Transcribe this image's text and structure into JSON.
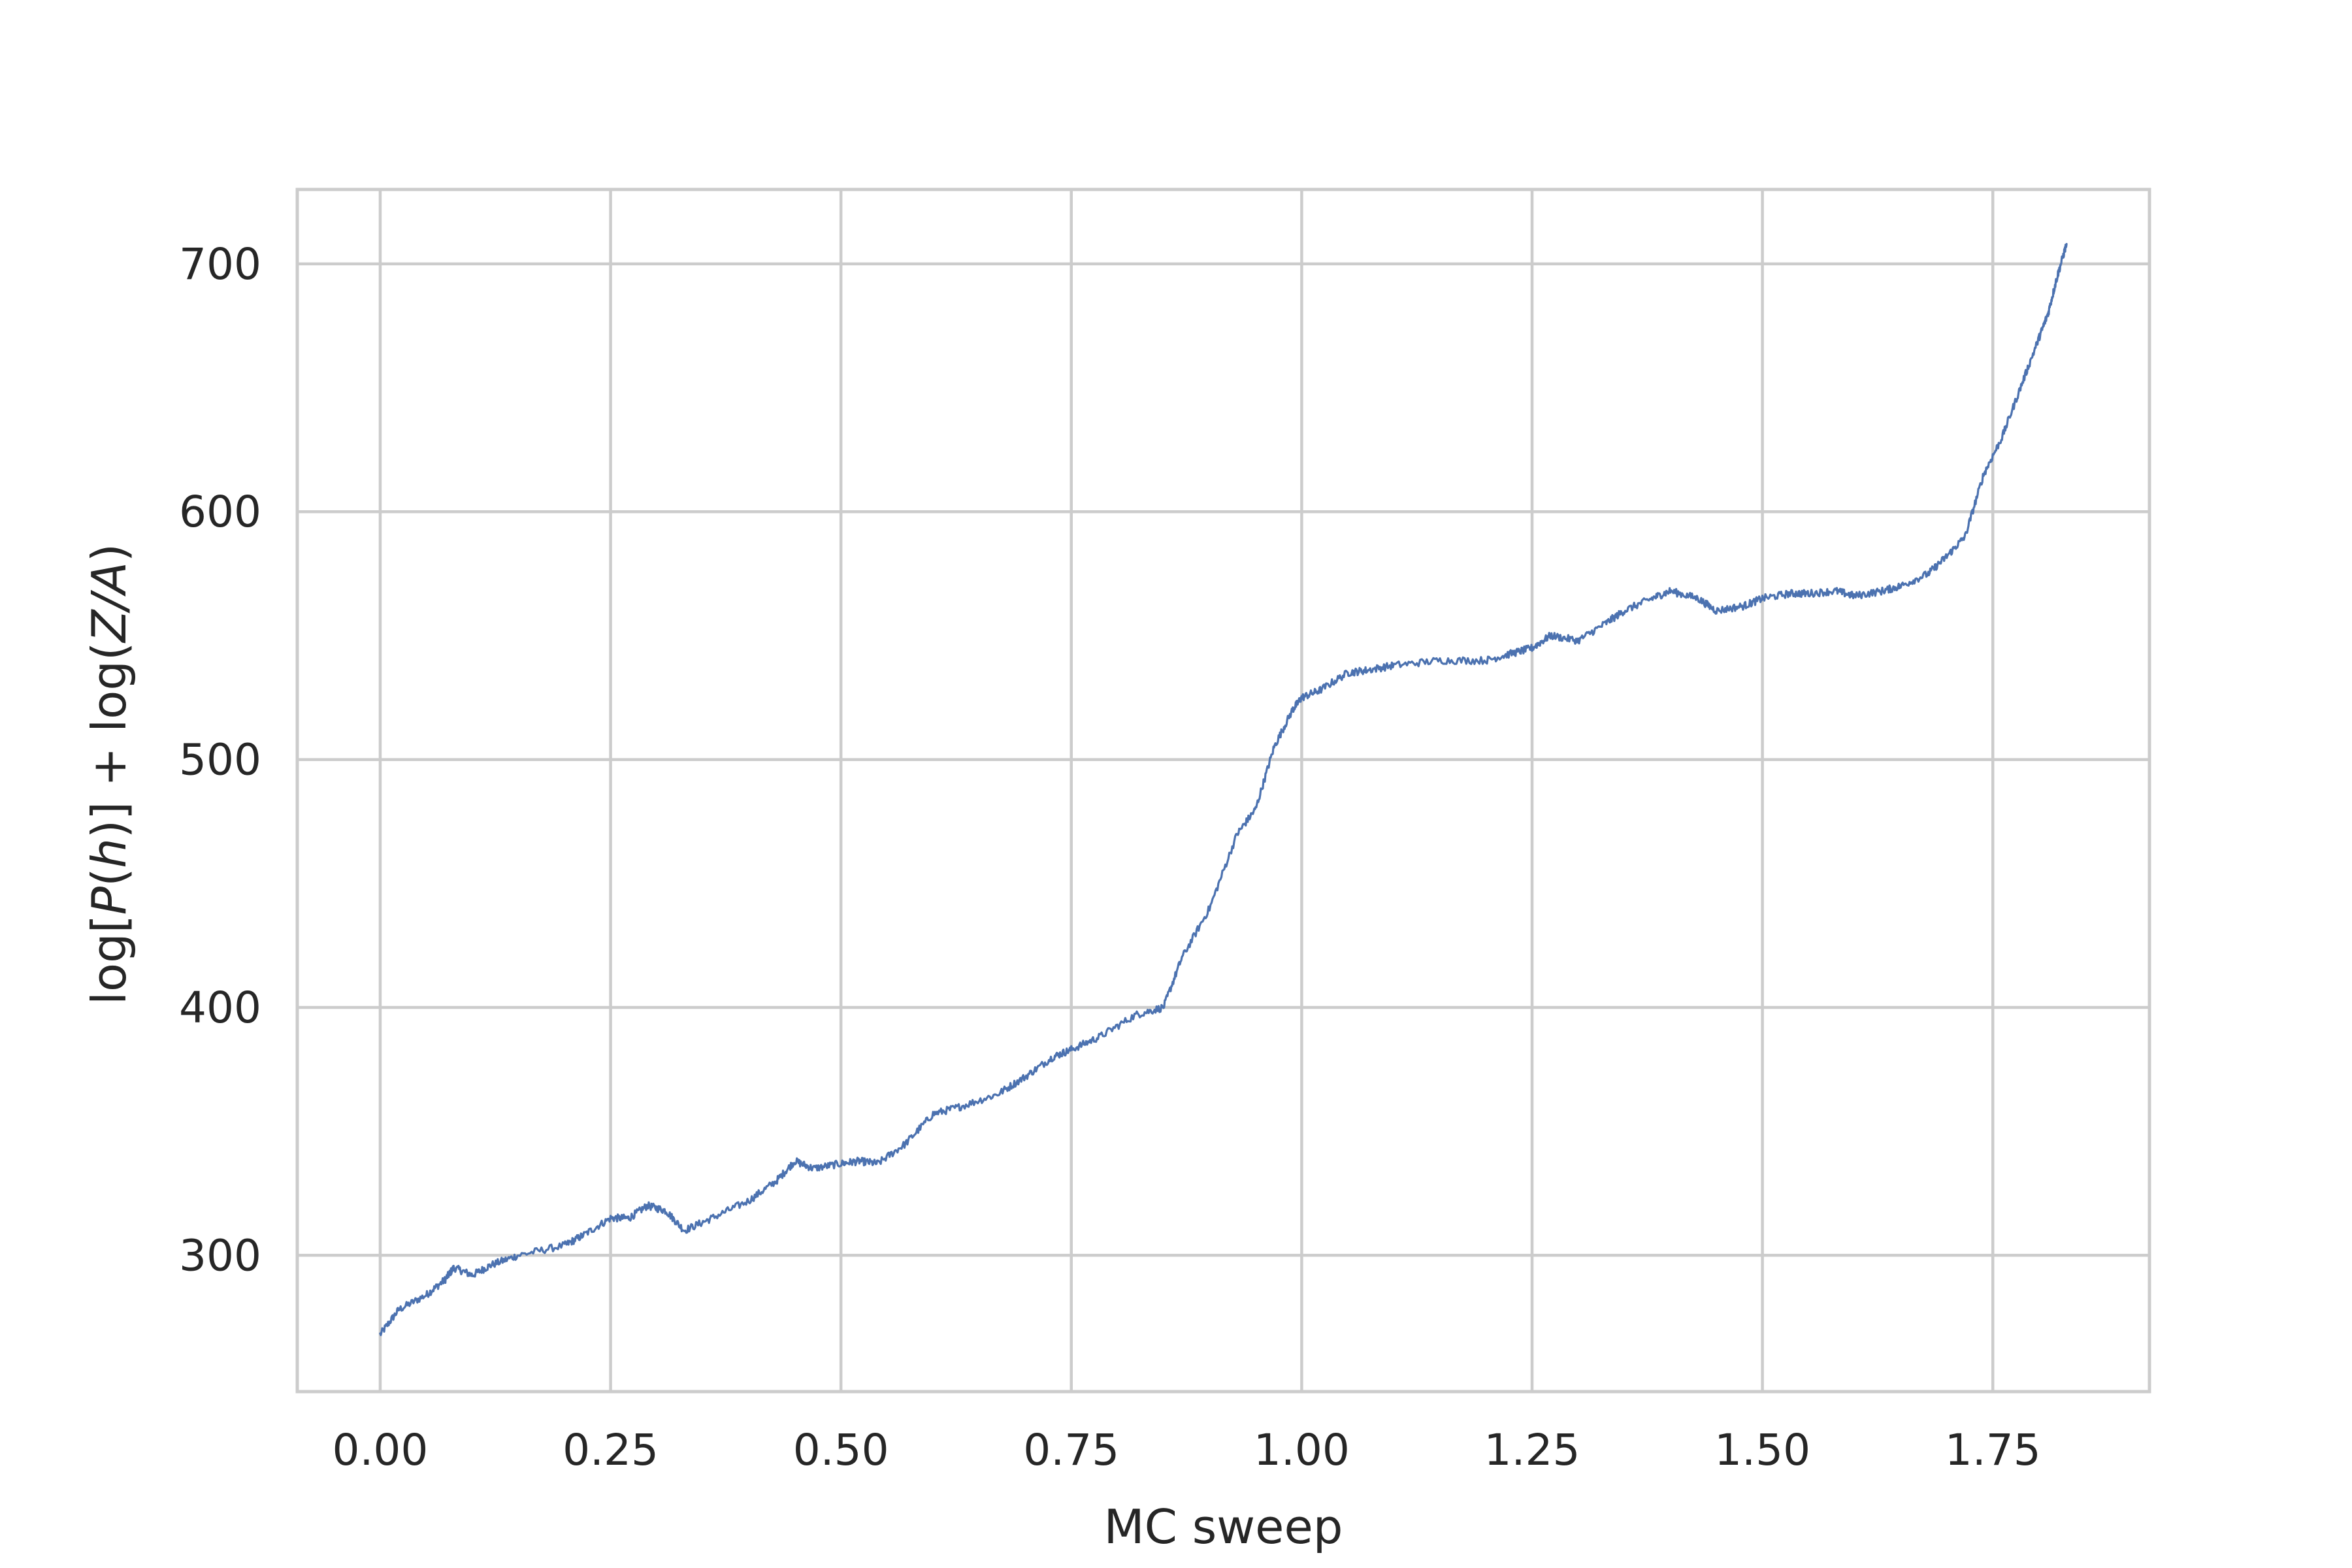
{
  "chart_data": {
    "type": "line",
    "title": "",
    "xlabel": "MC sweep",
    "ylabel": "log[P(h)] + log(Z/A)",
    "ylabel_parts": {
      "log1": "log[",
      "P": "P",
      "paren_open": "(",
      "h": "h",
      "paren_close_bracket": ")]",
      "plus": " + ",
      "log2": "log(",
      "ZA": "Z/A",
      "paren_close": ")"
    },
    "xlim": [
      -0.09,
      1.92
    ],
    "ylim": [
      245,
      730
    ],
    "grid": true,
    "legend": "none",
    "xticks": [
      0.0,
      0.25,
      0.5,
      0.75,
      1.0,
      1.25,
      1.5,
      1.75
    ],
    "xtick_labels": [
      "0.00",
      "0.25",
      "0.50",
      "0.75",
      "1.00",
      "1.25",
      "1.50",
      "1.75"
    ],
    "yticks": [
      300,
      400,
      500,
      600,
      700
    ],
    "ytick_labels": [
      "300",
      "400",
      "500",
      "600",
      "700"
    ],
    "series": [
      {
        "color": "#4c72b0",
        "x": [
          0.0,
          0.02,
          0.05,
          0.07,
          0.08,
          0.1,
          0.12,
          0.15,
          0.2,
          0.22,
          0.25,
          0.27,
          0.29,
          0.31,
          0.33,
          0.36,
          0.4,
          0.43,
          0.45,
          0.47,
          0.5,
          0.52,
          0.54,
          0.57,
          0.6,
          0.63,
          0.67,
          0.7,
          0.73,
          0.75,
          0.78,
          0.82,
          0.85,
          0.87,
          0.9,
          0.93,
          0.95,
          0.97,
          0.99,
          1.0,
          1.02,
          1.05,
          1.07,
          1.1,
          1.15,
          1.2,
          1.23,
          1.25,
          1.27,
          1.3,
          1.33,
          1.35,
          1.38,
          1.4,
          1.43,
          1.45,
          1.48,
          1.5,
          1.53,
          1.55,
          1.58,
          1.6,
          1.63,
          1.65,
          1.68,
          1.7,
          1.72,
          1.74,
          1.76,
          1.78,
          1.8,
          1.81,
          1.82,
          1.83
        ],
        "y": [
          268,
          278,
          284,
          290,
          295,
          292,
          296,
          300,
          304,
          308,
          315,
          315,
          320,
          318,
          310,
          315,
          322,
          330,
          338,
          335,
          337,
          338,
          337,
          345,
          357,
          360,
          365,
          372,
          380,
          383,
          388,
          397,
          400,
          420,
          440,
          470,
          480,
          505,
          520,
          525,
          528,
          535,
          536,
          538,
          540,
          540,
          543,
          545,
          550,
          548,
          555,
          560,
          565,
          568,
          565,
          560,
          562,
          565,
          567,
          567,
          568,
          566,
          568,
          570,
          575,
          582,
          590,
          615,
          630,
          650,
          670,
          680,
          695,
          708
        ]
      }
    ]
  }
}
